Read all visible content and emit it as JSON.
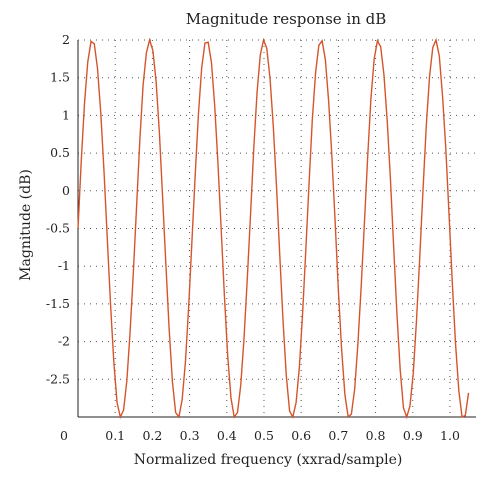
{
  "chart_data": {
    "type": "line",
    "title": "Magnitude response in dB",
    "xlabel": "Normalized frequency (xxrad/sample)",
    "ylabel": "Magnitude (dB)",
    "xlim": [
      0,
      1.07
    ],
    "ylim": [
      -3,
      2
    ],
    "x_ticks": [
      "0",
      "0.1",
      "0.2",
      "0.3",
      "0.4",
      "0.5",
      "0.6",
      "0.7",
      "0.8",
      "0.9",
      "1.0"
    ],
    "y_ticks": [
      "2",
      "1.5",
      "1",
      "0.5",
      "0",
      "-0.5",
      "-1",
      "-1.5",
      "-2",
      "-2.5"
    ],
    "grid": true,
    "series": [
      {
        "color": "#d4552b",
        "x": [
          0.0,
          0.0088,
          0.0175,
          0.0263,
          0.035,
          0.0438,
          0.0525,
          0.0613,
          0.07,
          0.0788,
          0.0875,
          0.0963,
          0.105,
          0.1138,
          0.1225,
          0.1313,
          0.14,
          0.1488,
          0.1575,
          0.1663,
          0.175,
          0.1838,
          0.1925,
          0.2013,
          0.21,
          0.2188,
          0.2275,
          0.2363,
          0.245,
          0.2538,
          0.2625,
          0.2713,
          0.28,
          0.2888,
          0.2975,
          0.3063,
          0.315,
          0.3238,
          0.3325,
          0.3413,
          0.35,
          0.3588,
          0.3675,
          0.3763,
          0.385,
          0.3938,
          0.4025,
          0.4113,
          0.42,
          0.4288,
          0.4375,
          0.4463,
          0.455,
          0.4638,
          0.4725,
          0.4813,
          0.49,
          0.4988,
          0.5075,
          0.5163,
          0.525,
          0.5338,
          0.5425,
          0.5513,
          0.56,
          0.5688,
          0.5775,
          0.5863,
          0.595,
          0.6038,
          0.6125,
          0.6213,
          0.63,
          0.6388,
          0.6475,
          0.6563,
          0.665,
          0.6738,
          0.6825,
          0.6913,
          0.7,
          0.7088,
          0.7175,
          0.7263,
          0.735,
          0.7438,
          0.7525,
          0.7613,
          0.77,
          0.7788,
          0.7875,
          0.7963,
          0.805,
          0.8138,
          0.8225,
          0.8313,
          0.84,
          0.8488,
          0.8575,
          0.8663,
          0.875,
          0.8838,
          0.8925,
          0.9013,
          0.91,
          0.9188,
          0.9275,
          0.9363,
          0.945,
          0.9538,
          0.9625,
          0.9713,
          0.98,
          0.9888,
          0.9975,
          1.0063,
          1.015,
          1.0238,
          1.0325,
          1.0413,
          1.05
        ],
        "y": [
          -0.5,
          0.4,
          1.16,
          1.71,
          1.98,
          1.95,
          1.62,
          1.03,
          0.25,
          -0.64,
          -1.51,
          -2.27,
          -2.81,
          -3.0,
          -2.91,
          -2.52,
          -1.88,
          -1.08,
          -0.21,
          0.68,
          1.4,
          1.83,
          2.0,
          1.86,
          1.45,
          0.77,
          -0.09,
          -0.98,
          -1.83,
          -2.53,
          -2.94,
          -3.0,
          -2.77,
          -2.27,
          -1.54,
          -0.67,
          0.2,
          1.02,
          1.63,
          1.96,
          1.97,
          1.7,
          1.13,
          0.36,
          -0.52,
          -1.41,
          -2.19,
          -2.75,
          -3.0,
          -2.94,
          -2.58,
          -1.96,
          -1.18,
          -0.32,
          0.56,
          1.3,
          1.8,
          2.0,
          1.89,
          1.49,
          0.86,
          0.05,
          -0.86,
          -1.73,
          -2.45,
          -2.92,
          -3.0,
          -2.81,
          -2.35,
          -1.63,
          -0.78,
          0.11,
          0.95,
          1.57,
          1.93,
          1.99,
          1.74,
          1.19,
          0.46,
          -0.41,
          -1.32,
          -2.11,
          -2.7,
          -3.0,
          -2.96,
          -2.63,
          -2.03,
          -1.27,
          -0.43,
          0.45,
          1.22,
          1.75,
          1.99,
          1.91,
          1.54,
          0.93,
          0.15,
          -0.76,
          -1.64,
          -2.38,
          -2.88,
          -3.0,
          -2.85,
          -2.42,
          -1.72,
          -0.88,
          0.01,
          0.86,
          1.51,
          1.9,
          2.0,
          1.79,
          1.26,
          0.56,
          -0.31,
          -1.22,
          -2.03,
          -2.65,
          -3.0,
          -2.98,
          -2.68
        ]
      }
    ]
  }
}
